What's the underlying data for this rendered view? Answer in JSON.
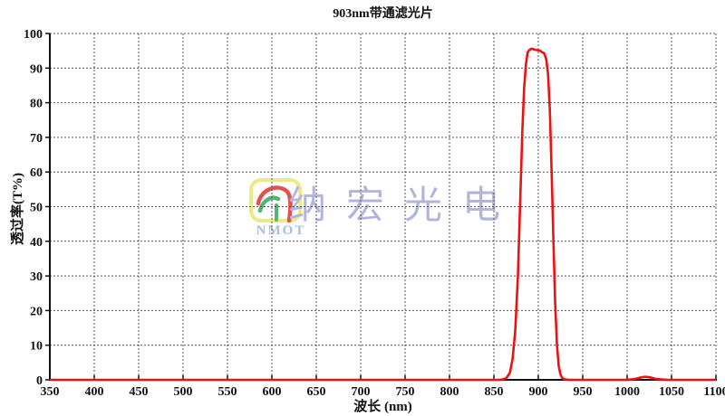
{
  "chart_data": {
    "type": "line",
    "title": "903nm带通滤光片",
    "xlabel": "波长 (nm)",
    "ylabel": "透过率(T%)",
    "xlim": [
      350,
      1100
    ],
    "ylim": [
      0,
      100
    ],
    "x_ticks": [
      350,
      400,
      450,
      500,
      550,
      600,
      650,
      700,
      750,
      800,
      850,
      900,
      950,
      1000,
      1050,
      1100
    ],
    "y_ticks": [
      0,
      10,
      20,
      30,
      40,
      50,
      60,
      70,
      80,
      90,
      100
    ],
    "grid": true,
    "grid_style": "dashed",
    "legend": "none",
    "line_color": "#ee1111",
    "grid_color": "#555555",
    "axis_color": "#111111",
    "series": [
      {
        "name": "透过率",
        "points": [
          [
            350,
            0
          ],
          [
            500,
            0
          ],
          [
            700,
            0
          ],
          [
            850,
            0
          ],
          [
            856,
            0
          ],
          [
            860,
            0.1
          ],
          [
            864,
            0.5
          ],
          [
            868,
            2
          ],
          [
            871,
            6
          ],
          [
            874,
            14
          ],
          [
            877,
            30
          ],
          [
            880,
            55
          ],
          [
            882,
            72
          ],
          [
            884,
            84
          ],
          [
            886,
            91
          ],
          [
            888,
            94.5
          ],
          [
            890,
            95.3
          ],
          [
            893,
            95.6
          ],
          [
            896,
            95.3
          ],
          [
            899,
            95.2
          ],
          [
            902,
            95.0
          ],
          [
            904,
            94.6
          ],
          [
            906,
            94.4
          ],
          [
            907,
            94.0
          ],
          [
            909,
            92.5
          ],
          [
            911,
            88
          ],
          [
            913,
            78
          ],
          [
            915,
            60
          ],
          [
            917,
            40
          ],
          [
            919,
            22
          ],
          [
            921,
            10
          ],
          [
            923,
            4
          ],
          [
            925,
            1.5
          ],
          [
            927,
            0.5
          ],
          [
            930,
            0.1
          ],
          [
            935,
            0
          ],
          [
            1000,
            0
          ],
          [
            1008,
            0.2
          ],
          [
            1014,
            0.6
          ],
          [
            1020,
            0.9
          ],
          [
            1026,
            0.7
          ],
          [
            1032,
            0.3
          ],
          [
            1038,
            0.1
          ],
          [
            1045,
            0
          ],
          [
            1100,
            0
          ]
        ]
      }
    ]
  },
  "watermark": {
    "logo_text": "NMOT",
    "text": "纳宏光电",
    "text_color": "#a9aedb",
    "logo_text_color": "#9cb8da",
    "logo_border_color": "#ece87a",
    "logo_arc_red": "#e04040",
    "logo_arc_green": "#3fae66"
  }
}
